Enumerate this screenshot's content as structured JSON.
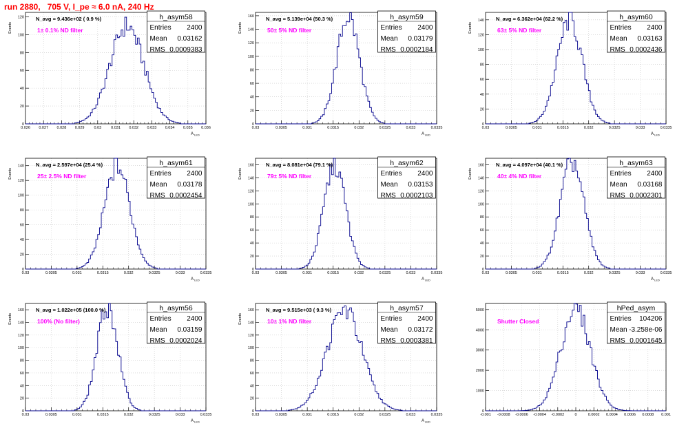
{
  "run_title": "run 2880,   705 V, I_pe ≈ 6.0 nA, 240 Hz",
  "colors": {
    "title": "#ff0000",
    "annotation": "#ff00ff",
    "histogram": "#00008b",
    "grid": "#c8c8c8",
    "axis": "#000000"
  },
  "chart_data": [
    {
      "type": "histogram",
      "name": "h_asym58",
      "ylabel": "Events",
      "xlabel": "A_LED",
      "xlim": [
        0.026,
        0.036
      ],
      "ylim": [
        0,
        125
      ],
      "xticks": [
        "0.026",
        "0.027",
        "0.028",
        "0.029",
        "0.03",
        "0.031",
        "0.032",
        "0.033",
        "0.034",
        "0.035",
        "0.036"
      ],
      "yticks": [
        "0",
        "20",
        "40",
        "60",
        "80",
        "100",
        "120"
      ],
      "navg": "N_avg = 9.436e+02 ( 0.9 %)",
      "filter": "1± 0.1% ND filter",
      "stats": [
        [
          "Entries",
          "2400"
        ],
        [
          "Mean",
          "0.03162"
        ],
        [
          "RMS",
          "0.0009383"
        ]
      ],
      "mean": 0.03162,
      "rms": 0.0009383,
      "peak": 110
    },
    {
      "type": "histogram",
      "name": "h_asym59",
      "ylabel": "Events",
      "xlabel": "A_LED",
      "xlim": [
        0.03,
        0.0335
      ],
      "ylim": [
        0,
        165
      ],
      "xticks": [
        "0.03",
        "0.0305",
        "0.031",
        "0.0315",
        "0.032",
        "0.0325",
        "0.033",
        "0.0335"
      ],
      "yticks": [
        "0",
        "20",
        "40",
        "60",
        "80",
        "100",
        "120",
        "140",
        "160"
      ],
      "navg": "N_avg = 5.139e+04 (50.3 %)",
      "filter": "50± 5% ND filter",
      "stats": [
        [
          "Entries",
          "2400"
        ],
        [
          "Mean",
          "0.03179"
        ],
        [
          "RMS",
          "0.0002184"
        ]
      ],
      "mean": 0.03179,
      "rms": 0.0002184,
      "peak": 160
    },
    {
      "type": "histogram",
      "name": "h_asym60",
      "ylabel": "Events",
      "xlabel": "A_LED",
      "xlim": [
        0.03,
        0.0335
      ],
      "ylim": [
        0,
        150
      ],
      "xticks": [
        "0.03",
        "0.0305",
        "0.031",
        "0.0315",
        "0.032",
        "0.0325",
        "0.033",
        "0.0335"
      ],
      "yticks": [
        "0",
        "20",
        "40",
        "60",
        "80",
        "100",
        "120",
        "140"
      ],
      "navg": "N_avg = 6.362e+04 (62.2 %)",
      "filter": "63± 5% ND filter",
      "stats": [
        [
          "Entries",
          "2400"
        ],
        [
          "Mean",
          "0.03163"
        ],
        [
          "RMS",
          "0.0002436"
        ]
      ],
      "mean": 0.03163,
      "rms": 0.0002436,
      "peak": 140
    },
    {
      "type": "histogram",
      "name": "h_asym61",
      "ylabel": "Events",
      "xlabel": "A_LED",
      "xlim": [
        0.03,
        0.0335
      ],
      "ylim": [
        0,
        150
      ],
      "xticks": [
        "0.03",
        "0.0305",
        "0.031",
        "0.0315",
        "0.032",
        "0.0325",
        "0.033",
        "0.0335"
      ],
      "yticks": [
        "0",
        "20",
        "40",
        "60",
        "80",
        "100",
        "120",
        "140"
      ],
      "navg": "N_avg = 2.597e+04 (25.4 %)",
      "filter": "25± 2.5% ND filter",
      "stats": [
        [
          "Entries",
          "2400"
        ],
        [
          "Mean",
          "0.03178"
        ],
        [
          "RMS",
          "0.0002454"
        ]
      ],
      "mean": 0.03178,
      "rms": 0.0002454,
      "peak": 140
    },
    {
      "type": "histogram",
      "name": "h_asym62",
      "ylabel": "Events",
      "xlabel": "A_LED",
      "xlim": [
        0.03,
        0.0335
      ],
      "ylim": [
        0,
        170
      ],
      "xticks": [
        "0.03",
        "0.0305",
        "0.031",
        "0.0315",
        "0.032",
        "0.0325",
        "0.033",
        "0.0335"
      ],
      "yticks": [
        "0",
        "20",
        "40",
        "60",
        "80",
        "100",
        "120",
        "140",
        "160"
      ],
      "navg": "N_avg = 8.081e+04 (79.1 %)",
      "filter": "79± 5% ND filter",
      "stats": [
        [
          "Entries",
          "2400"
        ],
        [
          "Mean",
          "0.03153"
        ],
        [
          "RMS",
          "0.0002103"
        ]
      ],
      "mean": 0.03153,
      "rms": 0.0002103,
      "peak": 160
    },
    {
      "type": "histogram",
      "name": "h_asym63",
      "ylabel": "Events",
      "xlabel": "A_LED",
      "xlim": [
        0.03,
        0.0335
      ],
      "ylim": [
        0,
        170
      ],
      "xticks": [
        "0.03",
        "0.0305",
        "0.031",
        "0.0315",
        "0.032",
        "0.0325",
        "0.033",
        "0.0335"
      ],
      "yticks": [
        "0",
        "20",
        "40",
        "60",
        "80",
        "100",
        "120",
        "140",
        "160"
      ],
      "navg": "N_avg = 4.097e+04 (40.1 %)",
      "filter": "40± 4% ND filter",
      "stats": [
        [
          "Entries",
          "2400"
        ],
        [
          "Mean",
          "0.03168"
        ],
        [
          "RMS",
          "0.0002301"
        ]
      ],
      "mean": 0.03168,
      "rms": 0.0002301,
      "peak": 165
    },
    {
      "type": "histogram",
      "name": "h_asym56",
      "ylabel": "Events",
      "xlabel": "A_LED",
      "xlim": [
        0.03,
        0.0335
      ],
      "ylim": [
        0,
        170
      ],
      "xticks": [
        "0.03",
        "0.0305",
        "0.031",
        "0.0315",
        "0.032",
        "0.0325",
        "0.033",
        "0.0335"
      ],
      "yticks": [
        "0",
        "20",
        "40",
        "60",
        "80",
        "100",
        "120",
        "140",
        "160"
      ],
      "navg": "N_avg = 1.022e+05 (100.0 %)",
      "filter": "100% (No filter)",
      "stats": [
        [
          "Entries",
          "2400"
        ],
        [
          "Mean",
          "0.03159"
        ],
        [
          "RMS",
          "0.0002024"
        ]
      ],
      "mean": 0.03159,
      "rms": 0.0002024,
      "peak": 165
    },
    {
      "type": "histogram",
      "name": "h_asym57",
      "ylabel": "Events",
      "xlabel": "A_LED",
      "xlim": [
        0.03,
        0.0335
      ],
      "ylim": [
        0,
        170
      ],
      "xticks": [
        "0.03",
        "0.0305",
        "0.031",
        "0.0315",
        "0.032",
        "0.0325",
        "0.033",
        "0.0335"
      ],
      "yticks": [
        "0",
        "20",
        "40",
        "60",
        "80",
        "100",
        "120",
        "140",
        "160"
      ],
      "navg": "N_avg = 9.515e+03 ( 9.3 %)",
      "filter": "10± 1% ND filter",
      "stats": [
        [
          "Entries",
          "2400"
        ],
        [
          "Mean",
          "0.03172"
        ],
        [
          "RMS",
          "0.0003381"
        ]
      ],
      "mean": 0.03172,
      "rms": 0.0003381,
      "peak": 160
    },
    {
      "type": "histogram",
      "name": "hPed_asym",
      "ylabel": "",
      "xlabel": "",
      "xlim": [
        -0.001,
        0.001
      ],
      "ylim": [
        0,
        5300
      ],
      "xticks": [
        "-0.001",
        "-0.0008",
        "-0.0006",
        "-0.0004",
        "-0.0002",
        "0",
        "0.0002",
        "0.0004",
        "0.0006",
        "0.0008",
        "0.001"
      ],
      "yticks": [
        "0",
        "1000",
        "2000",
        "3000",
        "4000",
        "5000"
      ],
      "navg": "",
      "filter": "Shutter Closed",
      "stats": [
        [
          "Entries",
          "104206"
        ],
        [
          "Mean",
          "-3.258e-06"
        ],
        [
          "RMS",
          "0.0001645"
        ]
      ],
      "mean": -3.258e-06,
      "rms": 0.0001645,
      "peak": 5050
    }
  ]
}
